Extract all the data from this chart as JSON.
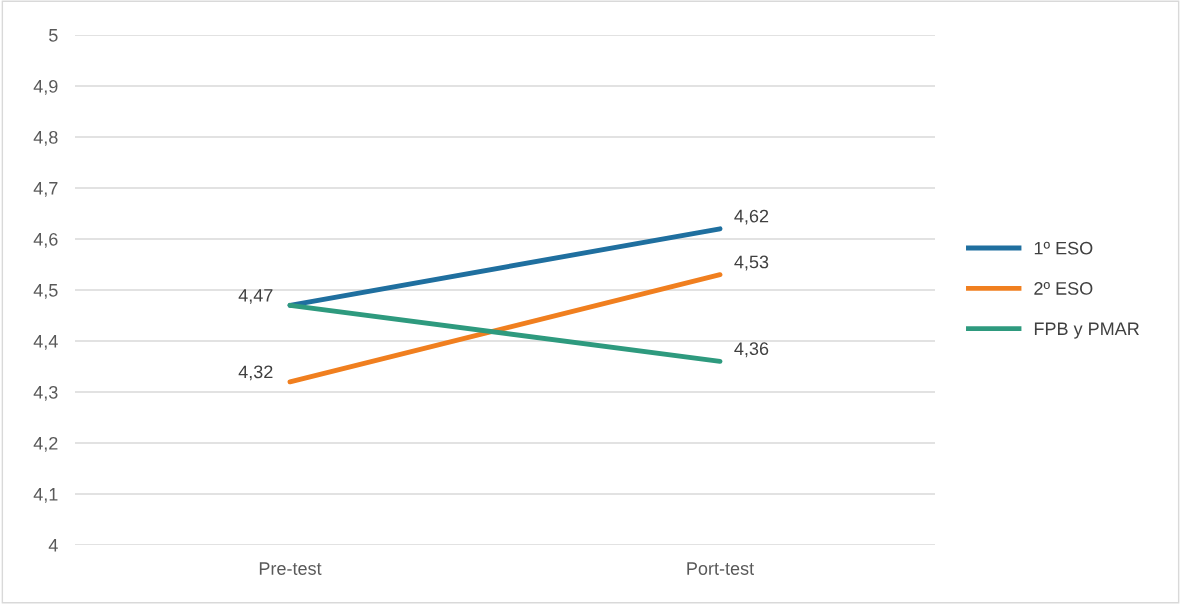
{
  "chart_data": {
    "type": "line",
    "categories": [
      "Pre-test",
      "Port-test"
    ],
    "series": [
      {
        "name": "1º ESO",
        "color": "#1f6f9f",
        "values": [
          4.47,
          4.62
        ],
        "value_labels": [
          "4,47",
          "4,62"
        ]
      },
      {
        "name": "2º ESO",
        "color": "#f07f1f",
        "values": [
          4.32,
          4.53
        ],
        "value_labels": [
          "4,32",
          "4,53"
        ]
      },
      {
        "name": "FPB y PMAR",
        "color": "#2e9a7e",
        "values": [
          4.47,
          4.36
        ],
        "value_labels": [
          null,
          "4,36"
        ]
      }
    ],
    "ylim": [
      4,
      5
    ],
    "yticks": [
      4,
      {
        "value": 4.1,
        "label": "4,1"
      },
      {
        "value": 4.2,
        "label": "4,2"
      },
      {
        "value": 4.3,
        "label": "4,3"
      },
      {
        "value": 4.4,
        "label": "4,4"
      },
      {
        "value": 4.5,
        "label": "4,5"
      },
      {
        "value": 4.6,
        "label": "4,6"
      },
      {
        "value": 4.7,
        "label": "4,7"
      },
      {
        "value": 4.8,
        "label": "4,8"
      },
      {
        "value": 4.9,
        "label": "4,9"
      },
      5
    ],
    "grid": "y",
    "legend": "right",
    "marker": "none",
    "line_style": "solid"
  }
}
